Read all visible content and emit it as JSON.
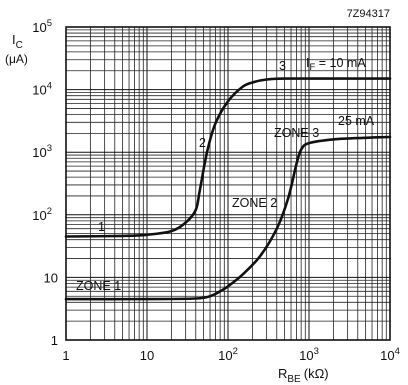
{
  "chart_data": {
    "type": "line",
    "title": "",
    "figure_id": "7Z94317",
    "xlabel": {
      "main": "R",
      "sub": "BE",
      "unit": "(kΩ)"
    },
    "ylabel": {
      "main": "I",
      "sub": "C",
      "unit": "(μA)"
    },
    "xscale": "log",
    "yscale": "log",
    "xlim": [
      1,
      10000
    ],
    "ylim": [
      1,
      100000
    ],
    "grid": true,
    "x_ticks": [
      {
        "value": 1,
        "base": "1",
        "exp": ""
      },
      {
        "value": 10,
        "base": "10",
        "exp": ""
      },
      {
        "value": 100,
        "base": "10",
        "exp": "2"
      },
      {
        "value": 1000,
        "base": "10",
        "exp": "3"
      },
      {
        "value": 10000,
        "base": "10",
        "exp": "4"
      }
    ],
    "y_ticks": [
      {
        "value": 1,
        "base": "1",
        "exp": ""
      },
      {
        "value": 10,
        "base": "10",
        "exp": ""
      },
      {
        "value": 100,
        "base": "10",
        "exp": "2"
      },
      {
        "value": 1000,
        "base": "10",
        "exp": "3"
      },
      {
        "value": 10000,
        "base": "10",
        "exp": "4"
      },
      {
        "value": 100000,
        "base": "10",
        "exp": "5"
      }
    ],
    "series": [
      {
        "name": "IF = 10 mA",
        "x": [
          1,
          5,
          10,
          20,
          30,
          40,
          45,
          55,
          70,
          100,
          150,
          200,
          300,
          500,
          1000,
          10000
        ],
        "y": [
          45,
          46,
          48,
          55,
          75,
          120,
          250,
          1000,
          2900,
          6500,
          11000,
          13000,
          14500,
          15000,
          15000,
          15000
        ]
      },
      {
        "name": "IF = 25 mA",
        "x": [
          1,
          10,
          40,
          60,
          80,
          100,
          150,
          250,
          400,
          550,
          700,
          800,
          1000,
          2000,
          5000,
          10000
        ],
        "y": [
          4.5,
          4.5,
          4.6,
          5.0,
          6.0,
          7.2,
          11,
          22,
          60,
          180,
          650,
          1100,
          1400,
          1600,
          1700,
          1750
        ]
      }
    ],
    "annotations": {
      "if_label": {
        "main": "I",
        "sub": "F",
        "rest": " = 10 mA"
      },
      "if2_label": "25 mA",
      "zone1": "ZONE 1",
      "zone2": "ZONE 2",
      "zone3": "ZONE 3",
      "marker1": "1",
      "marker2": "2",
      "marker3": "3"
    }
  }
}
